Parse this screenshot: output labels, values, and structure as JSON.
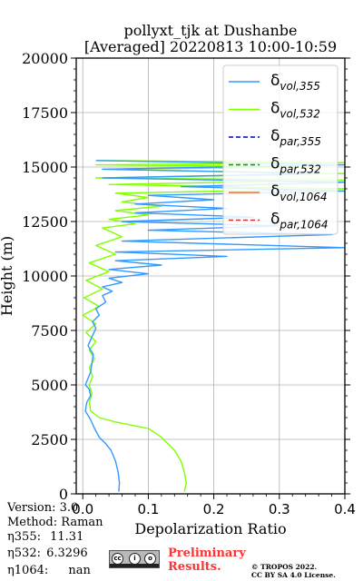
{
  "chart_data": {
    "type": "line",
    "title": "pollyxt_tjk at Dushanbe",
    "subtitle": "[Averaged] 20220813 10:00-10:59",
    "xlabel": "Depolarization Ratio",
    "ylabel": "Height (m)",
    "xlim": [
      -0.01,
      0.4
    ],
    "ylim": [
      0,
      20000
    ],
    "x_ticks": [
      "0.0",
      "0.1",
      "0.2",
      "0.3",
      "0.4"
    ],
    "y_ticks": [
      "0",
      "2500",
      "5000",
      "7500",
      "10000",
      "12500",
      "15000",
      "17500",
      "20000"
    ],
    "grid": true,
    "legend_position": "top-right",
    "series": [
      {
        "name": "δ_vol,355",
        "legend_main": "δ",
        "legend_sub": "vol,355",
        "color": "#3399ff",
        "style": "solid",
        "x": [
          0.055,
          0.056,
          0.054,
          0.05,
          0.043,
          0.035,
          0.025,
          0.018,
          0.012,
          0.004,
          0.006,
          0.012,
          0.01,
          0.004,
          0.008,
          0.012,
          0.014,
          0.016,
          0.008,
          0.014,
          0.02,
          0.015,
          0.025,
          0.02,
          0.035,
          0.03,
          0.045,
          0.03,
          0.06,
          0.04,
          0.1,
          0.04,
          0.12,
          0.05,
          0.22,
          0.05,
          0.4,
          0.06,
          0.38,
          0.1,
          0.3,
          0.06,
          0.26,
          0.08,
          0.22,
          0.08,
          0.2,
          0.1,
          0.4,
          0.15,
          0.4,
          0.03,
          0.36,
          0.03,
          0.4,
          0.02
        ],
        "y": [
          100,
          500,
          1000,
          1500,
          2000,
          2300,
          2600,
          3000,
          3400,
          3800,
          4200,
          4500,
          4800,
          5000,
          5300,
          5600,
          6000,
          6400,
          6800,
          7200,
          7600,
          7900,
          8200,
          8500,
          8800,
          9100,
          9300,
          9500,
          9700,
          9900,
          10100,
          10300,
          10500,
          10700,
          10900,
          11100,
          11300,
          11600,
          11900,
          12100,
          12300,
          12500,
          12700,
          12900,
          13100,
          13300,
          13500,
          13700,
          13900,
          14100,
          14300,
          14500,
          14700,
          14900,
          15100,
          15300
        ]
      },
      {
        "name": "δ_vol,532",
        "legend_main": "δ",
        "legend_sub": "vol,532",
        "color": "#80ff00",
        "style": "solid",
        "x": [
          0.155,
          0.158,
          0.155,
          0.15,
          0.14,
          0.13,
          0.12,
          0.1,
          0.05,
          0.025,
          0.012,
          0.01,
          0.014,
          0.01,
          0.015,
          0.01,
          0.018,
          0.01,
          0.02,
          0.005,
          0.02,
          0.0,
          0.025,
          0.002,
          0.03,
          0.005,
          0.04,
          0.01,
          0.05,
          0.02,
          0.06,
          0.03,
          0.08,
          0.04,
          0.1,
          0.05,
          0.12,
          0.06,
          0.1,
          0.05,
          0.4,
          0.04,
          0.4,
          0.02,
          0.4,
          0.03,
          0.36,
          0.02,
          0.4,
          0.02
        ],
        "y": [
          100,
          500,
          1000,
          1500,
          2000,
          2300,
          2600,
          3000,
          3300,
          3500,
          3800,
          4200,
          4600,
          5000,
          5400,
          5800,
          6200,
          6600,
          7000,
          7400,
          7800,
          8200,
          8600,
          9000,
          9400,
          9800,
          10200,
          10600,
          11000,
          11400,
          11800,
          12200,
          12400,
          12600,
          12800,
          13000,
          13200,
          13400,
          13600,
          13800,
          14000,
          14200,
          14400,
          14500,
          14700,
          14900,
          15000,
          15100,
          15200,
          15300
        ]
      },
      {
        "name": "δ_par,355",
        "legend_main": "δ",
        "legend_sub": "par,355",
        "color": "#0000cc",
        "style": "dashed",
        "x": [],
        "y": []
      },
      {
        "name": "δ_par,532",
        "legend_main": "δ",
        "legend_sub": "par,532",
        "color": "#009900",
        "style": "dashed",
        "x": [],
        "y": []
      },
      {
        "name": "δ_vol,1064",
        "legend_main": "δ",
        "legend_sub": "vol,1064",
        "color": "#ff6633",
        "style": "solid",
        "x": [],
        "y": []
      },
      {
        "name": "δ_par,1064",
        "legend_main": "δ",
        "legend_sub": "par,1064",
        "color": "#cc3333",
        "style": "dashed",
        "x": [],
        "y": []
      }
    ]
  },
  "meta": {
    "version": "Version: 3.0",
    "method": "Method: Raman",
    "eta355_label": "η355:",
    "eta355_value": "11.31",
    "eta532_label": "η532:",
    "eta532_value": "6.3296",
    "eta1064_label": "η1064:",
    "eta1064_value": "nan"
  },
  "footer": {
    "prelim_line1": "Preliminary",
    "prelim_line2": "Results.",
    "copyright_line1": "© TROPOS 2022.",
    "copyright_line2": "CC BY SA 4.0 License.",
    "cc_icons": [
      "cc",
      "i",
      "o"
    ]
  }
}
